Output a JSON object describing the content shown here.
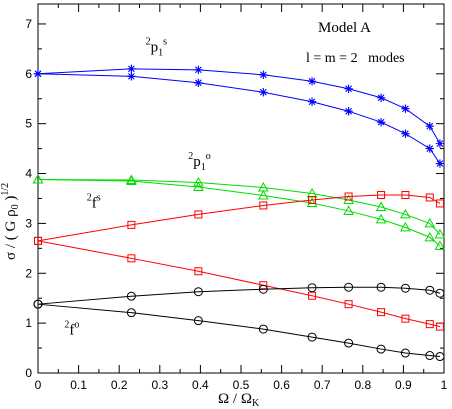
{
  "chart_data": {
    "type": "line",
    "title": "Model A",
    "subtitle": "l = m = 2   modes",
    "xlabel": "Ω / Ω",
    "xlabel_sub": "K",
    "ylabel": "σ / ( G ρ",
    "ylabel_sub": "0",
    "ylabel_tail": " )",
    "ylabel_exp": "1/2",
    "xlim": [
      0,
      1
    ],
    "ylim": [
      0,
      7.4
    ],
    "xticks": [
      "0",
      "0.1",
      "0.2",
      "0.3",
      "0.4",
      "0.5",
      "0.6",
      "0.7",
      "0.8",
      "0.9",
      "1"
    ],
    "yticks": [
      "0",
      "1",
      "2",
      "3",
      "4",
      "5",
      "6",
      "7"
    ],
    "grid": false,
    "series": [
      {
        "mode": "p1s",
        "color": "#0000ff",
        "marker": "star",
        "x": [
          0,
          0.23,
          0.395,
          0.555,
          0.675,
          0.765,
          0.845,
          0.905,
          0.965,
          0.99
        ],
        "y": [
          6.0,
          6.1,
          6.08,
          5.98,
          5.85,
          5.7,
          5.52,
          5.3,
          4.95,
          4.6
        ]
      },
      {
        "mode": "p1o",
        "color": "#0000ff",
        "marker": "star",
        "x": [
          0,
          0.23,
          0.395,
          0.555,
          0.675,
          0.765,
          0.845,
          0.905,
          0.965,
          0.99
        ],
        "y": [
          6.0,
          5.95,
          5.82,
          5.63,
          5.44,
          5.25,
          5.03,
          4.8,
          4.5,
          4.2
        ]
      },
      {
        "mode": "p1s-green",
        "color": "#00dd00",
        "marker": "triangle",
        "x": [
          0,
          0.23,
          0.395,
          0.555,
          0.675,
          0.765,
          0.845,
          0.905,
          0.965,
          0.99
        ],
        "y": [
          3.88,
          3.87,
          3.82,
          3.72,
          3.6,
          3.47,
          3.33,
          3.18,
          3.0,
          2.78
        ]
      },
      {
        "mode": "p1o-green",
        "color": "#00dd00",
        "marker": "triangle",
        "x": [
          0,
          0.23,
          0.395,
          0.555,
          0.675,
          0.765,
          0.845,
          0.905,
          0.965,
          0.99
        ],
        "y": [
          3.88,
          3.85,
          3.73,
          3.56,
          3.41,
          3.25,
          3.08,
          2.92,
          2.72,
          2.55
        ]
      },
      {
        "mode": "fs",
        "color": "#ff0000",
        "marker": "square",
        "x": [
          0,
          0.23,
          0.395,
          0.555,
          0.675,
          0.765,
          0.845,
          0.905,
          0.965,
          0.99
        ],
        "y": [
          2.65,
          2.97,
          3.18,
          3.36,
          3.47,
          3.54,
          3.57,
          3.57,
          3.52,
          3.4
        ]
      },
      {
        "mode": "fo",
        "color": "#ff0000",
        "marker": "square",
        "x": [
          0,
          0.23,
          0.395,
          0.555,
          0.675,
          0.765,
          0.845,
          0.905,
          0.965,
          0.99
        ],
        "y": [
          2.65,
          2.3,
          2.04,
          1.76,
          1.55,
          1.38,
          1.22,
          1.09,
          0.98,
          0.93
        ]
      },
      {
        "mode": "fs-black",
        "color": "#000000",
        "marker": "circle",
        "x": [
          0,
          0.23,
          0.395,
          0.555,
          0.675,
          0.765,
          0.845,
          0.905,
          0.965,
          0.99
        ],
        "y": [
          1.38,
          1.54,
          1.63,
          1.68,
          1.71,
          1.72,
          1.72,
          1.7,
          1.66,
          1.6
        ]
      },
      {
        "mode": "fo-black",
        "color": "#000000",
        "marker": "circle",
        "x": [
          0,
          0.23,
          0.395,
          0.555,
          0.675,
          0.765,
          0.845,
          0.905,
          0.965,
          0.99
        ],
        "y": [
          1.38,
          1.21,
          1.05,
          0.88,
          0.72,
          0.6,
          0.48,
          0.4,
          0.35,
          0.33
        ]
      }
    ],
    "annotations": [
      {
        "id": "p1s",
        "pre": "2",
        "main": "p",
        "sub": "1",
        "sup": "s",
        "x": 0.265,
        "y": 6.45
      },
      {
        "id": "p1o",
        "pre": "2",
        "main": "p",
        "sub": "1",
        "sup": "o",
        "x": 0.37,
        "y": 4.15
      },
      {
        "id": "fs",
        "pre": "2",
        "main": "f",
        "sub": "",
        "sup": "s",
        "x": 0.12,
        "y": 3.32
      },
      {
        "id": "fo",
        "pre": "2",
        "main": "f",
        "sub": "",
        "sup": "o",
        "x": 0.065,
        "y": 0.77
      }
    ]
  }
}
